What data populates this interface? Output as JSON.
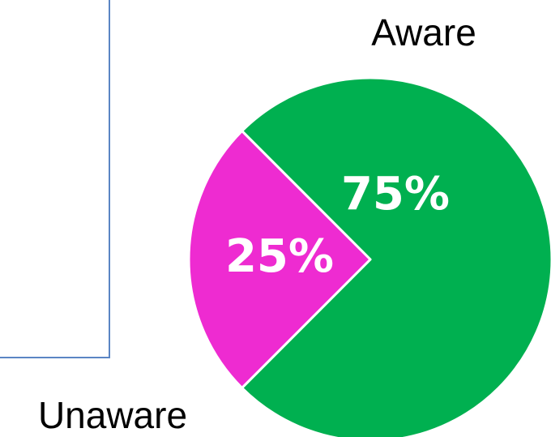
{
  "chart_data": {
    "type": "pie",
    "slices": [
      {
        "label": "Aware",
        "value": 75,
        "display": "75%",
        "color": "#00b050"
      },
      {
        "label": "Unaware",
        "value": 25,
        "display": "25%",
        "color": "#ee2bd1"
      }
    ],
    "start_angle_deg": -135,
    "legend": "none"
  }
}
